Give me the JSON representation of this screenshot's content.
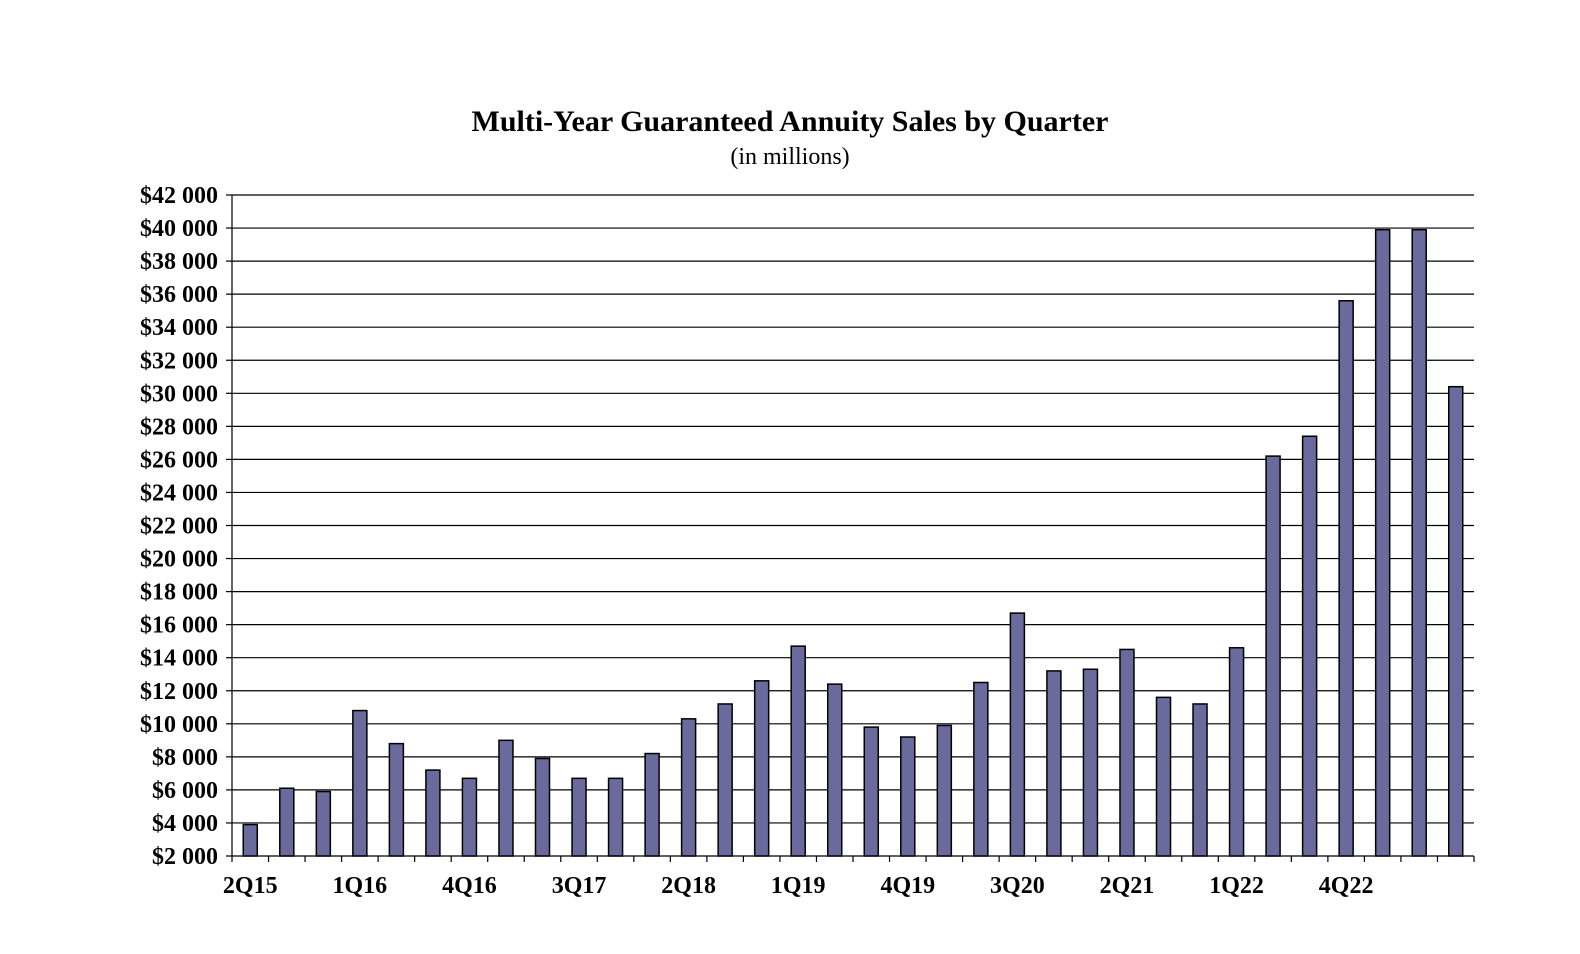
{
  "chart_data": {
    "type": "bar",
    "title": "Multi-Year Guaranteed Annuity Sales by Quarter",
    "subtitle": "(in millions)",
    "xlabel": "",
    "ylabel": "",
    "ylim": [
      2000,
      42000
    ],
    "y_ticks": [
      2000,
      4000,
      6000,
      8000,
      10000,
      12000,
      14000,
      16000,
      18000,
      20000,
      22000,
      24000,
      26000,
      28000,
      30000,
      32000,
      34000,
      36000,
      38000,
      40000,
      42000
    ],
    "y_tick_labels": [
      "$2 000",
      "$4 000",
      "$6 000",
      "$8 000",
      "$10 000",
      "$12 000",
      "$14 000",
      "$16 000",
      "$18 000",
      "$20 000",
      "$22 000",
      "$24 000",
      "$26 000",
      "$28 000",
      "$30 000",
      "$32 000",
      "$34 000",
      "$36 000",
      "$38 000",
      "$40 000",
      "$42 000"
    ],
    "grid": true,
    "categories": [
      "2Q15",
      "3Q15",
      "4Q15",
      "1Q16",
      "2Q16",
      "3Q16",
      "4Q16",
      "1Q17",
      "2Q17",
      "3Q17",
      "4Q17",
      "1Q18",
      "2Q18",
      "3Q18",
      "4Q18",
      "1Q19",
      "2Q19",
      "3Q19",
      "4Q19",
      "1Q20",
      "2Q20",
      "3Q20",
      "4Q20",
      "1Q21",
      "2Q21",
      "3Q21",
      "4Q21",
      "1Q22",
      "2Q22",
      "3Q22",
      "4Q22",
      "1Q23",
      "2Q23",
      "3Q23"
    ],
    "x_tick_labels_shown": [
      "2Q15",
      "1Q16",
      "4Q16",
      "3Q17",
      "2Q18",
      "1Q19",
      "4Q19",
      "3Q20",
      "2Q21",
      "1Q22",
      "4Q22"
    ],
    "values": [
      3900,
      6100,
      5900,
      10800,
      8800,
      7200,
      6700,
      9000,
      7900,
      6700,
      6700,
      8200,
      10300,
      11200,
      12600,
      14700,
      12400,
      9800,
      9200,
      9900,
      12500,
      16700,
      13200,
      13300,
      14500,
      11600,
      11200,
      14600,
      26200,
      27400,
      35600,
      39900,
      39900,
      30400
    ],
    "colors": {
      "bar": "#6a6a9c",
      "grid": "#000000"
    }
  }
}
